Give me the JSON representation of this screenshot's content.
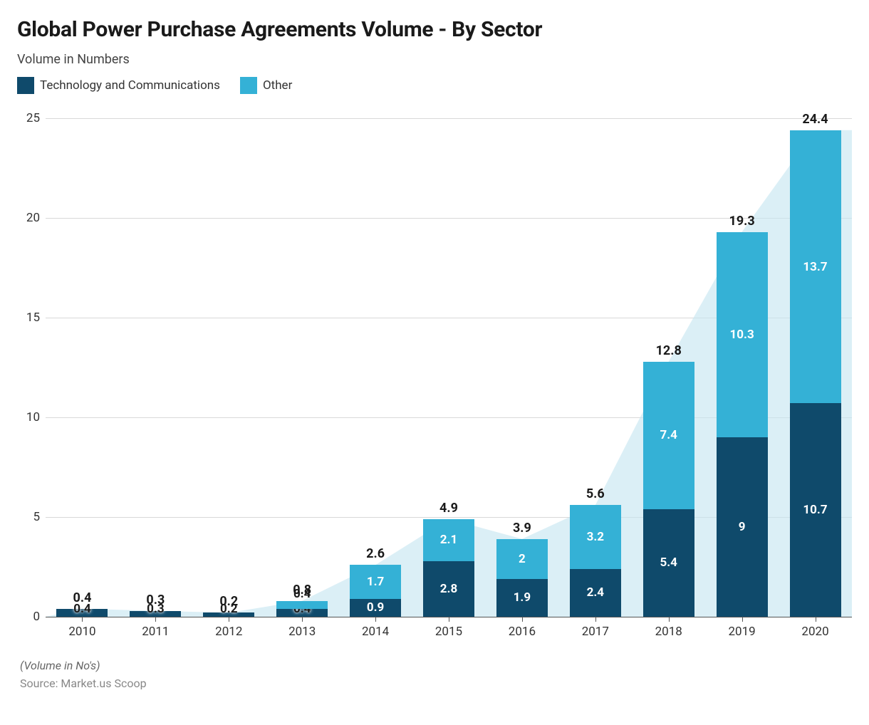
{
  "chart": {
    "type": "stacked-bar-with-area",
    "title": "Global Power Purchase Agreements Volume - By Sector",
    "subtitle": "Volume in Numbers",
    "footnote": "(Volume in No's)",
    "source": "Source: Market.us Scoop",
    "background_color": "#ffffff",
    "title_color": "#1a1a1a",
    "title_fontsize": 30,
    "subtitle_fontsize": 18,
    "legend": [
      {
        "label": "Technology and Communications",
        "color": "#0f4a6b"
      },
      {
        "label": "Other",
        "color": "#34b1d6"
      }
    ],
    "series_colors": {
      "tech": "#0f4a6b",
      "other": "#34b1d6"
    },
    "area_fill": "#c7e6f1",
    "area_opacity": 0.65,
    "grid_color": "#d8d8d8",
    "axis_color": "#555555",
    "label_inside_color": "#ffffff",
    "label_outside_color": "#1a1a1a",
    "total_label_color": "#1a1a1a",
    "tick_label_color": "#333333",
    "label_fontsize": 17,
    "total_fontsize": 18,
    "tick_fontsize": 17,
    "ylim": [
      0,
      25
    ],
    "ytick_step": 5,
    "yticks": [
      0,
      5,
      10,
      15,
      20,
      25
    ],
    "bar_width": 0.7,
    "categories": [
      "2010",
      "2011",
      "2012",
      "2013",
      "2014",
      "2015",
      "2016",
      "2017",
      "2018",
      "2019",
      "2020"
    ],
    "data": [
      {
        "tech": 0.4,
        "other": 0.0,
        "tech_label": "0.4",
        "other_label": "",
        "total": 0.4,
        "total_label": "0.4"
      },
      {
        "tech": 0.3,
        "other": 0.0,
        "tech_label": "0.3",
        "other_label": "",
        "total": 0.3,
        "total_label": "0.3"
      },
      {
        "tech": 0.2,
        "other": 0.0,
        "tech_label": "0.2",
        "other_label": "",
        "total": 0.2,
        "total_label": "0.2"
      },
      {
        "tech": 0.4,
        "other": 0.4,
        "tech_label": "0.4",
        "other_label": "0.4",
        "total": 0.8,
        "total_label": "0.8"
      },
      {
        "tech": 0.9,
        "other": 1.7,
        "tech_label": "0.9",
        "other_label": "1.7",
        "total": 2.6,
        "total_label": "2.6"
      },
      {
        "tech": 2.8,
        "other": 2.1,
        "tech_label": "2.8",
        "other_label": "2.1",
        "total": 4.9,
        "total_label": "4.9"
      },
      {
        "tech": 1.9,
        "other": 2.0,
        "tech_label": "1.9",
        "other_label": "2",
        "total": 3.9,
        "total_label": "3.9"
      },
      {
        "tech": 2.4,
        "other": 3.2,
        "tech_label": "2.4",
        "other_label": "3.2",
        "total": 5.6,
        "total_label": "5.6"
      },
      {
        "tech": 5.4,
        "other": 7.4,
        "tech_label": "5.4",
        "other_label": "7.4",
        "total": 12.8,
        "total_label": "12.8"
      },
      {
        "tech": 9.0,
        "other": 10.3,
        "tech_label": "9",
        "other_label": "10.3",
        "total": 19.3,
        "total_label": "19.3"
      },
      {
        "tech": 10.7,
        "other": 13.7,
        "tech_label": "10.7",
        "other_label": "13.7",
        "total": 24.4,
        "total_label": "24.4"
      }
    ]
  }
}
